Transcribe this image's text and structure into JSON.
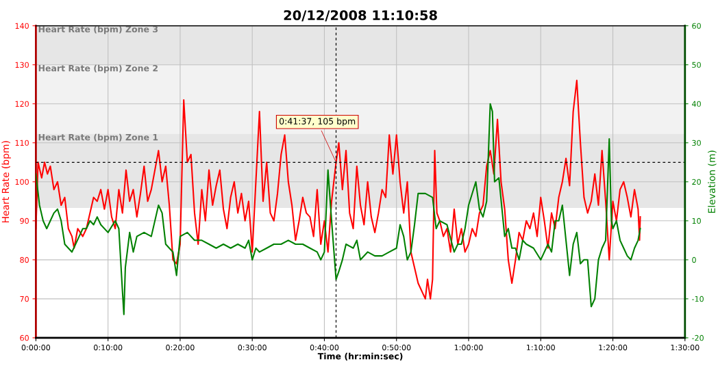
{
  "chart_data": {
    "type": "line",
    "title": "20/12/2008 11:10:58",
    "xlabel": "Time (hr:min:sec)",
    "ylabel": "Heart Rate (bpm)",
    "y2label": "Elevation (m)",
    "xlim": [
      0,
      90
    ],
    "xticks": [
      {
        "value": 0,
        "label": "0:00:00"
      },
      {
        "value": 10,
        "label": "0:10:00"
      },
      {
        "value": 20,
        "label": "0:20:00"
      },
      {
        "value": 30,
        "label": "0:30:00"
      },
      {
        "value": 40,
        "label": "0:40:00"
      },
      {
        "value": 50,
        "label": "0:50:00"
      },
      {
        "value": 60,
        "label": "1:00:00"
      },
      {
        "value": 70,
        "label": "1:10:00"
      },
      {
        "value": 80,
        "label": "1:20:00"
      },
      {
        "value": 90,
        "label": "1:30:00"
      }
    ],
    "ylim": [
      60,
      140
    ],
    "yticks": [
      60,
      70,
      80,
      90,
      100,
      110,
      120,
      130,
      140
    ],
    "y2lim": [
      -20,
      60
    ],
    "y2ticks": [
      -20,
      -10,
      0,
      10,
      20,
      30,
      40,
      50,
      60
    ],
    "grid": true,
    "legend": false,
    "line_style": "solid",
    "marker": "none",
    "bands": [
      {
        "axis": "y",
        "from": 130,
        "to": 140,
        "label": "Heart Rate (bpm) Zone 3",
        "color": "#e6e6e6"
      },
      {
        "axis": "y",
        "from": 112.3,
        "to": 130,
        "label": "Heart Rate (bpm) Zone 2",
        "color": "#f2f2f2"
      },
      {
        "axis": "y",
        "from": 93.3,
        "to": 112.3,
        "label": "Heart Rate (bpm) Zone 1",
        "color": "#e6e6e6"
      }
    ],
    "ref_lines": [
      {
        "axis": "y",
        "value": 105,
        "color": "#000000",
        "line_style": "dashed"
      },
      {
        "axis": "x",
        "value": 41.62,
        "color": "#000000",
        "line_style": "dashed"
      }
    ],
    "annotations": [
      {
        "text": "0:41:37, 105 bpm",
        "x": 41.62,
        "y": 105
      }
    ],
    "series": [
      {
        "color": "#ff0000",
        "x": [
          0,
          0.3,
          0.8,
          1.2,
          1.6,
          2.0,
          2.5,
          3.0,
          3.5,
          4.0,
          4.5,
          5.0,
          5.3,
          5.8,
          6.5,
          7.0,
          7.5,
          8.0,
          8.5,
          9.0,
          9.5,
          10.0,
          10.5,
          11.0,
          11.5,
          12.0,
          12.5,
          13.0,
          13.5,
          14.0,
          14.5,
          15.0,
          15.5,
          16.0,
          16.5,
          17.0,
          17.5,
          18.0,
          18.5,
          19.0,
          19.5,
          20.0,
          20.5,
          21.0,
          21.5,
          22.0,
          22.5,
          23.0,
          23.5,
          24.0,
          24.5,
          25.0,
          25.5,
          26.0,
          26.5,
          27.0,
          27.5,
          28.0,
          28.5,
          29.0,
          29.5,
          30.0,
          30.5,
          31.0,
          31.5,
          32.0,
          32.5,
          33.0,
          33.5,
          34.0,
          34.5,
          35.0,
          35.5,
          36.0,
          36.5,
          37.0,
          37.5,
          38.0,
          38.5,
          39.0,
          39.5,
          40.0,
          40.5,
          41.0,
          41.62,
          42.0,
          42.5,
          43.0,
          43.5,
          44.0,
          44.5,
          45.0,
          45.5,
          46.0,
          46.5,
          47.0,
          47.5,
          48.0,
          48.5,
          49.0,
          49.5,
          50.0,
          50.5,
          51.0,
          51.5,
          52.0,
          52.5,
          53.0,
          54.0,
          54.3,
          54.7,
          55.0,
          55.3,
          55.6,
          56.0,
          56.5,
          57.0,
          57.5,
          58.0,
          58.5,
          59.0,
          59.5,
          60.0,
          60.5,
          61.0,
          61.5,
          62.0,
          62.5,
          63.0,
          63.5,
          64.0,
          64.5,
          65.0,
          65.5,
          66.0,
          66.5,
          67.0,
          67.5,
          68.0,
          68.5,
          69.0,
          69.5,
          70.0,
          70.5,
          71.0,
          71.5,
          72.0,
          72.5,
          73.0,
          73.5,
          74.0,
          74.5,
          75.0,
          75.5,
          76.0,
          76.5,
          77.0,
          77.5,
          78.0,
          78.5,
          79.0,
          79.5,
          80.0,
          80.5,
          81.0,
          81.5,
          82.0,
          82.5,
          83.0,
          83.5,
          83.7,
          83.8
        ],
        "values": [
          88,
          105,
          101,
          105,
          102,
          104,
          98,
          100,
          94,
          96,
          88,
          86,
          83,
          88,
          86,
          88,
          92,
          96,
          95,
          98,
          93,
          98,
          91,
          88,
          98,
          92,
          103,
          95,
          98,
          91,
          97,
          104,
          95,
          98,
          103,
          108,
          100,
          104,
          94,
          80,
          79,
          84,
          121,
          105,
          107,
          92,
          84,
          98,
          90,
          103,
          94,
          99,
          103,
          93,
          88,
          96,
          100,
          92,
          97,
          90,
          95,
          82,
          100,
          118,
          95,
          105,
          92,
          90,
          97,
          107,
          112,
          100,
          94,
          85,
          90,
          96,
          92,
          91,
          86,
          98,
          84,
          90,
          82,
          95,
          105,
          110,
          98,
          108,
          92,
          88,
          104,
          94,
          89,
          100,
          91,
          87,
          92,
          98,
          96,
          112,
          102,
          112,
          100,
          92,
          100,
          82,
          78,
          74,
          70,
          75,
          70,
          75,
          108,
          92,
          90,
          86,
          88,
          82,
          93,
          84,
          88,
          82,
          84,
          88,
          86,
          92,
          94,
          104,
          108,
          102,
          116,
          100,
          93,
          80,
          74,
          80,
          87,
          85,
          90,
          88,
          92,
          86,
          96,
          90,
          83,
          92,
          88,
          96,
          100,
          106,
          99,
          118,
          126,
          110,
          96,
          92,
          95,
          102,
          94,
          108,
          95,
          80,
          95,
          90,
          98,
          100,
          96,
          91,
          98,
          93,
          85,
          91
        ]
      },
      {
        "color": "#008000",
        "axis": "y2",
        "x": [
          0,
          0.5,
          1.0,
          1.5,
          2.0,
          2.5,
          3.0,
          3.5,
          4.0,
          4.5,
          5.0,
          5.5,
          6.0,
          6.5,
          7.0,
          7.5,
          8.0,
          8.5,
          9.0,
          10.0,
          11.0,
          11.5,
          12.0,
          12.2,
          12.4,
          13.0,
          13.5,
          14.0,
          15.0,
          16.0,
          17.0,
          17.5,
          18.0,
          19.0,
          19.5,
          20.0,
          21.0,
          22.0,
          23.0,
          24.0,
          25.0,
          26.0,
          27.0,
          28.0,
          29.0,
          29.5,
          30.0,
          30.5,
          31.0,
          32.0,
          33.0,
          34.0,
          35.0,
          36.0,
          37.0,
          38.0,
          39.0,
          39.5,
          40.0,
          40.5,
          41.0,
          41.62,
          42.0,
          42.5,
          43.0,
          44.0,
          44.5,
          45.0,
          46.0,
          47.0,
          48.0,
          49.0,
          50.0,
          50.5,
          51.0,
          51.5,
          52.0,
          52.5,
          53.0,
          54.0,
          55.0,
          55.5,
          56.0,
          57.0,
          58.0,
          58.5,
          59.0,
          59.5,
          60.0,
          61.0,
          61.5,
          62.0,
          62.5,
          63.0,
          63.3,
          63.6,
          64.2,
          65.0,
          65.5,
          66.0,
          66.5,
          67.0,
          67.5,
          68.0,
          69.0,
          70.0,
          71.0,
          71.5,
          72.0,
          72.5,
          73.0,
          73.5,
          74.0,
          74.5,
          75.0,
          75.5,
          76.0,
          76.5,
          77.0,
          77.5,
          78.0,
          78.5,
          79.0,
          79.5,
          79.8,
          80.0,
          80.5,
          81.0,
          81.5,
          82.0,
          82.5,
          83.0,
          83.5,
          83.8
        ],
        "values": [
          22,
          14,
          10,
          8,
          10,
          12,
          13,
          10,
          4,
          3,
          2,
          4,
          6,
          8,
          8,
          10,
          9,
          11,
          9,
          7,
          10,
          8,
          -8,
          -14,
          -2,
          7,
          2,
          6,
          7,
          6,
          14,
          12,
          4,
          2,
          -4,
          6,
          7,
          5,
          5,
          4,
          3,
          4,
          3,
          4,
          3,
          5,
          0,
          3,
          2,
          3,
          4,
          4,
          5,
          4,
          4,
          3,
          2,
          0,
          2,
          23,
          10,
          -5,
          -3,
          0,
          4,
          3,
          5,
          0,
          2,
          1,
          1,
          2,
          3,
          9,
          6,
          0,
          2,
          9,
          17,
          17,
          16,
          8,
          10,
          9,
          2,
          4,
          4,
          8,
          14,
          20,
          13,
          11,
          15,
          40,
          38,
          20,
          21,
          6,
          8,
          3,
          3,
          0,
          5,
          4,
          3,
          0,
          4,
          2,
          10,
          10,
          14,
          5,
          -4,
          4,
          7,
          -1,
          0,
          0,
          -12,
          -10,
          0,
          3,
          5,
          31,
          10,
          8,
          10,
          5,
          3,
          1,
          0,
          3,
          5,
          8
        ]
      }
    ]
  }
}
